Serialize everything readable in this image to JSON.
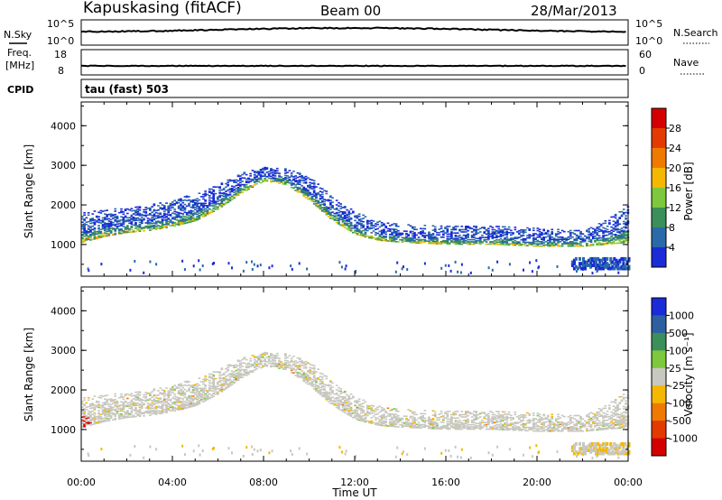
{
  "header": {
    "station": "Kapuskasing (fitACF)",
    "beam": "Beam 00",
    "date": "28/Mar/2013"
  },
  "noise_panel": {
    "left_label": "N.Sky",
    "right_label": "N.Search",
    "left_ticks": [
      "10^5",
      "10^0"
    ],
    "right_ticks": [
      "10^5",
      "10^0"
    ]
  },
  "freq_panel": {
    "left_label_1": "Freq.",
    "left_label_2": "[MHz]",
    "right_label": "Nave",
    "left_ticks": [
      "18",
      "8"
    ],
    "right_ticks": [
      "60",
      "0"
    ]
  },
  "cpid_panel": {
    "label": "CPID",
    "value": "tau (fast) 503"
  },
  "colorbars": {
    "power": {
      "label": "Power [dB]",
      "ticks": [
        "28",
        "24",
        "20",
        "16",
        "12",
        "8",
        "4"
      ],
      "colors": [
        "#d40000",
        "#e33a00",
        "#f07a00",
        "#f5b800",
        "#7dc83c",
        "#3a8f5a",
        "#2a6aa8",
        "#1a2bd8"
      ]
    },
    "velocity": {
      "label": "Velocity [m s⁻¹]",
      "ticks": [
        "1000",
        "500",
        "100",
        "25",
        "-25",
        "-100",
        "-500",
        "-1000"
      ],
      "colors": [
        "#1a2bd8",
        "#2e5fa0",
        "#3a8f5a",
        "#7dc83c",
        "#c8c8c0",
        "#f5b800",
        "#f07a00",
        "#e33a00",
        "#d40000"
      ]
    }
  },
  "chart_data": [
    {
      "type": "heatmap",
      "panel": "power",
      "ylabel": "Slant Range [km]",
      "xlabel": "",
      "y_ticks": [
        "1000",
        "2000",
        "3000",
        "4000"
      ],
      "ylim": [
        200,
        4600
      ],
      "xlim_hours": [
        0,
        24
      ],
      "main_echo_band": {
        "times_hr": [
          0,
          1,
          2,
          3,
          4,
          5,
          6,
          7,
          8,
          9,
          10,
          11,
          12,
          13,
          14,
          16,
          18,
          20,
          22,
          23,
          24
        ],
        "lower_km": [
          1050,
          1200,
          1300,
          1350,
          1450,
          1600,
          1900,
          2300,
          2600,
          2500,
          2100,
          1600,
          1250,
          1100,
          1050,
          1000,
          1000,
          950,
          950,
          1000,
          1050
        ],
        "upper_km": [
          1800,
          1900,
          1900,
          2000,
          2100,
          2300,
          2500,
          2800,
          2950,
          2900,
          2700,
          2200,
          1800,
          1600,
          1500,
          1450,
          1450,
          1400,
          1350,
          1600,
          2000
        ]
      }
    },
    {
      "type": "heatmap",
      "panel": "velocity",
      "ylabel": "Slant Range [km]",
      "xlabel": "Time UT",
      "y_ticks": [
        "1000",
        "2000",
        "3000",
        "4000"
      ],
      "ylim": [
        200,
        4600
      ],
      "x_ticks": [
        "00:00",
        "04:00",
        "08:00",
        "12:00",
        "16:00",
        "20:00",
        "00:00"
      ],
      "xlim_hours": [
        0,
        24
      ]
    }
  ]
}
